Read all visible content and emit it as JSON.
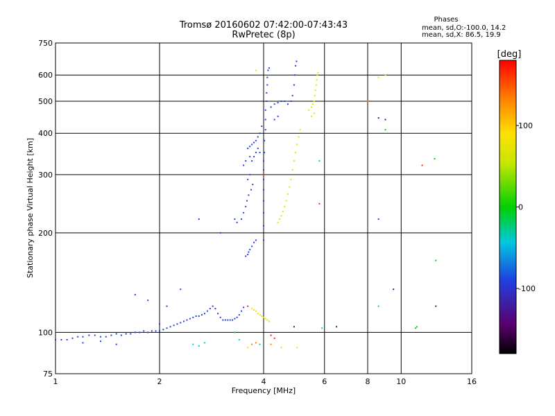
{
  "chart_data": {
    "type": "scatter",
    "title": "Tromsø 20160602 07:42:00-07:43:43",
    "subtitle": "RwPretec (8p)",
    "xlabel": "Frequency [MHz]",
    "ylabel": "Stationary phase Virtual Height [km]",
    "x_scale": "log2",
    "y_scale": "log",
    "xlim": [
      1,
      16
    ],
    "ylim": [
      75,
      750
    ],
    "x_ticks": [
      "1",
      "2",
      "4",
      "6",
      "8",
      "10",
      "16"
    ],
    "x_tick_values": [
      1,
      2,
      4,
      6,
      8,
      10,
      16
    ],
    "y_ticks": [
      "75",
      "100",
      "200",
      "300",
      "400",
      "500",
      "600",
      "750"
    ],
    "y_tick_values": [
      75,
      100,
      200,
      300,
      400,
      500,
      600,
      750
    ],
    "grid": true,
    "legend": {
      "title": "Phases",
      "lines": [
        "mean, sd,O:-100.0, 14.2",
        "mean, sd,X:  86.5, 19.9"
      ],
      "placement": "top-right"
    },
    "colorbar": {
      "label": "[deg]",
      "min": -180,
      "max": 180,
      "tick_labels": [
        "100",
        "0",
        "-100"
      ],
      "tick_values": [
        100,
        0,
        -100
      ]
    },
    "series": [
      {
        "mode": "O",
        "phase_deg": -100,
        "color": "#1f3fe0",
        "points": [
          [
            1.0,
            95
          ],
          [
            1.04,
            95
          ],
          [
            1.08,
            95
          ],
          [
            1.12,
            96
          ],
          [
            1.16,
            97
          ],
          [
            1.2,
            97
          ],
          [
            1.25,
            98
          ],
          [
            1.3,
            98
          ],
          [
            1.35,
            97
          ],
          [
            1.4,
            97
          ],
          [
            1.45,
            98
          ],
          [
            1.5,
            99
          ],
          [
            1.55,
            98
          ],
          [
            1.6,
            99
          ],
          [
            1.65,
            99
          ],
          [
            1.7,
            100
          ],
          [
            1.75,
            100
          ],
          [
            1.8,
            101
          ],
          [
            1.85,
            100
          ],
          [
            1.9,
            101
          ],
          [
            1.95,
            101
          ],
          [
            2.0,
            101
          ],
          [
            2.05,
            102
          ],
          [
            2.1,
            103
          ],
          [
            2.15,
            104
          ],
          [
            2.2,
            105
          ],
          [
            2.25,
            106
          ],
          [
            2.3,
            107
          ],
          [
            2.35,
            108
          ],
          [
            2.4,
            109
          ],
          [
            2.45,
            110
          ],
          [
            2.5,
            111
          ],
          [
            2.55,
            112
          ],
          [
            2.6,
            112
          ],
          [
            2.65,
            113
          ],
          [
            2.7,
            114
          ],
          [
            2.75,
            116
          ],
          [
            2.8,
            118
          ],
          [
            2.85,
            120
          ],
          [
            2.9,
            118
          ],
          [
            2.95,
            114
          ],
          [
            3.0,
            111
          ],
          [
            3.05,
            109
          ],
          [
            3.1,
            109
          ],
          [
            3.15,
            109
          ],
          [
            3.2,
            109
          ],
          [
            3.25,
            109
          ],
          [
            3.3,
            110
          ],
          [
            3.35,
            111
          ],
          [
            3.4,
            113
          ],
          [
            3.45,
            116
          ],
          [
            3.5,
            119
          ],
          [
            1.7,
            130
          ],
          [
            1.85,
            125
          ],
          [
            2.1,
            120
          ],
          [
            2.3,
            135
          ],
          [
            1.5,
            92
          ],
          [
            1.2,
            93
          ],
          [
            1.35,
            94
          ],
          [
            2.0,
            106
          ],
          [
            3.55,
            170
          ],
          [
            3.6,
            172
          ],
          [
            3.62,
            175
          ],
          [
            3.65,
            178
          ],
          [
            3.7,
            182
          ],
          [
            3.75,
            187
          ],
          [
            3.8,
            190
          ],
          [
            3.58,
            250
          ],
          [
            3.62,
            260
          ],
          [
            3.68,
            270
          ],
          [
            3.72,
            280
          ],
          [
            3.6,
            290
          ],
          [
            3.65,
            300
          ],
          [
            3.55,
            240
          ],
          [
            3.5,
            230
          ],
          [
            3.45,
            220
          ],
          [
            3.6,
            360
          ],
          [
            3.65,
            365
          ],
          [
            3.7,
            370
          ],
          [
            3.75,
            375
          ],
          [
            3.8,
            380
          ],
          [
            3.85,
            390
          ],
          [
            3.9,
            400
          ],
          [
            3.95,
            420
          ],
          [
            3.85,
            360
          ],
          [
            3.8,
            350
          ],
          [
            3.9,
            350
          ],
          [
            3.75,
            340
          ],
          [
            3.7,
            330
          ],
          [
            3.65,
            340
          ],
          [
            3.55,
            330
          ],
          [
            3.5,
            320
          ],
          [
            4.0,
            190
          ],
          [
            4.0,
            210
          ],
          [
            4.0,
            230
          ],
          [
            4.0,
            250
          ],
          [
            4.0,
            270
          ],
          [
            4.0,
            290
          ],
          [
            4.0,
            310
          ],
          [
            4.0,
            330
          ],
          [
            4.02,
            350
          ],
          [
            4.02,
            380
          ],
          [
            4.05,
            410
          ],
          [
            4.05,
            440
          ],
          [
            4.05,
            470
          ],
          [
            4.08,
            500
          ],
          [
            4.08,
            530
          ],
          [
            4.1,
            560
          ],
          [
            4.1,
            590
          ],
          [
            4.12,
            620
          ],
          [
            4.15,
            630
          ],
          [
            4.2,
            480
          ],
          [
            4.3,
            490
          ],
          [
            4.4,
            495
          ],
          [
            4.5,
            500
          ],
          [
            4.6,
            500
          ],
          [
            4.7,
            490
          ],
          [
            4.8,
            500
          ],
          [
            4.85,
            520
          ],
          [
            4.9,
            560
          ],
          [
            4.92,
            600
          ],
          [
            4.95,
            640
          ],
          [
            4.98,
            660
          ],
          [
            4.3,
            440
          ],
          [
            4.4,
            450
          ],
          [
            3.3,
            220
          ],
          [
            3.35,
            215
          ],
          [
            2.6,
            220
          ],
          [
            3.0,
            200
          ],
          [
            8.6,
            220
          ]
        ]
      },
      {
        "mode": "X",
        "phase_deg": 86.5,
        "color": "#e6e600",
        "points": [
          [
            3.7,
            118
          ],
          [
            3.75,
            117
          ],
          [
            3.8,
            116
          ],
          [
            3.85,
            114
          ],
          [
            3.9,
            113
          ],
          [
            3.95,
            112
          ],
          [
            4.0,
            111
          ],
          [
            4.05,
            110
          ],
          [
            4.1,
            109
          ],
          [
            4.15,
            108
          ],
          [
            4.4,
            215
          ],
          [
            4.45,
            220
          ],
          [
            4.5,
            225
          ],
          [
            4.55,
            232
          ],
          [
            4.6,
            240
          ],
          [
            4.65,
            250
          ],
          [
            4.7,
            262
          ],
          [
            4.75,
            275
          ],
          [
            4.8,
            290
          ],
          [
            4.85,
            310
          ],
          [
            4.9,
            330
          ],
          [
            4.95,
            350
          ],
          [
            5.0,
            370
          ],
          [
            5.05,
            390
          ],
          [
            5.1,
            410
          ],
          [
            5.4,
            470
          ],
          [
            5.5,
            480
          ],
          [
            5.55,
            490
          ],
          [
            5.6,
            500
          ],
          [
            5.62,
            520
          ],
          [
            5.65,
            540
          ],
          [
            5.68,
            560
          ],
          [
            5.7,
            580
          ],
          [
            5.72,
            600
          ],
          [
            5.75,
            610
          ],
          [
            5.6,
            460
          ],
          [
            5.5,
            450
          ],
          [
            3.8,
            620
          ],
          [
            8.6,
            590
          ],
          [
            9.0,
            600
          ],
          [
            4.5,
            90
          ],
          [
            5.0,
            90
          ],
          [
            3.6,
            90
          ]
        ]
      },
      {
        "mode": "other",
        "color": "#00c8e0",
        "points": [
          [
            2.5,
            92
          ],
          [
            2.6,
            91
          ],
          [
            2.7,
            93
          ],
          [
            5.8,
            330
          ],
          [
            8.6,
            120
          ],
          [
            5.9,
            103
          ],
          [
            3.4,
            95
          ],
          [
            3.9,
            92
          ]
        ]
      },
      {
        "mode": "other",
        "color": "#00d000",
        "points": [
          [
            11.0,
            103
          ],
          [
            11.1,
            104
          ],
          [
            12.5,
            335
          ],
          [
            12.6,
            165
          ],
          [
            3.3,
            100
          ],
          [
            9.0,
            410
          ]
        ]
      },
      {
        "mode": "other",
        "color": "#ff2000",
        "points": [
          [
            5.8,
            245
          ],
          [
            11.5,
            320
          ],
          [
            4.0,
            300
          ],
          [
            3.6,
            120
          ],
          [
            4.2,
            98
          ],
          [
            4.3,
            96
          ]
        ]
      },
      {
        "mode": "other",
        "color": "#ff8000",
        "points": [
          [
            3.7,
            92
          ],
          [
            3.8,
            93
          ],
          [
            4.2,
            92
          ],
          [
            8.0,
            500
          ]
        ]
      },
      {
        "mode": "other",
        "color": "#500080",
        "points": [
          [
            4.9,
            104
          ],
          [
            6.5,
            104
          ],
          [
            8.6,
            445
          ],
          [
            9.0,
            440
          ],
          [
            12.6,
            120
          ],
          [
            9.5,
            135
          ]
        ]
      }
    ]
  }
}
